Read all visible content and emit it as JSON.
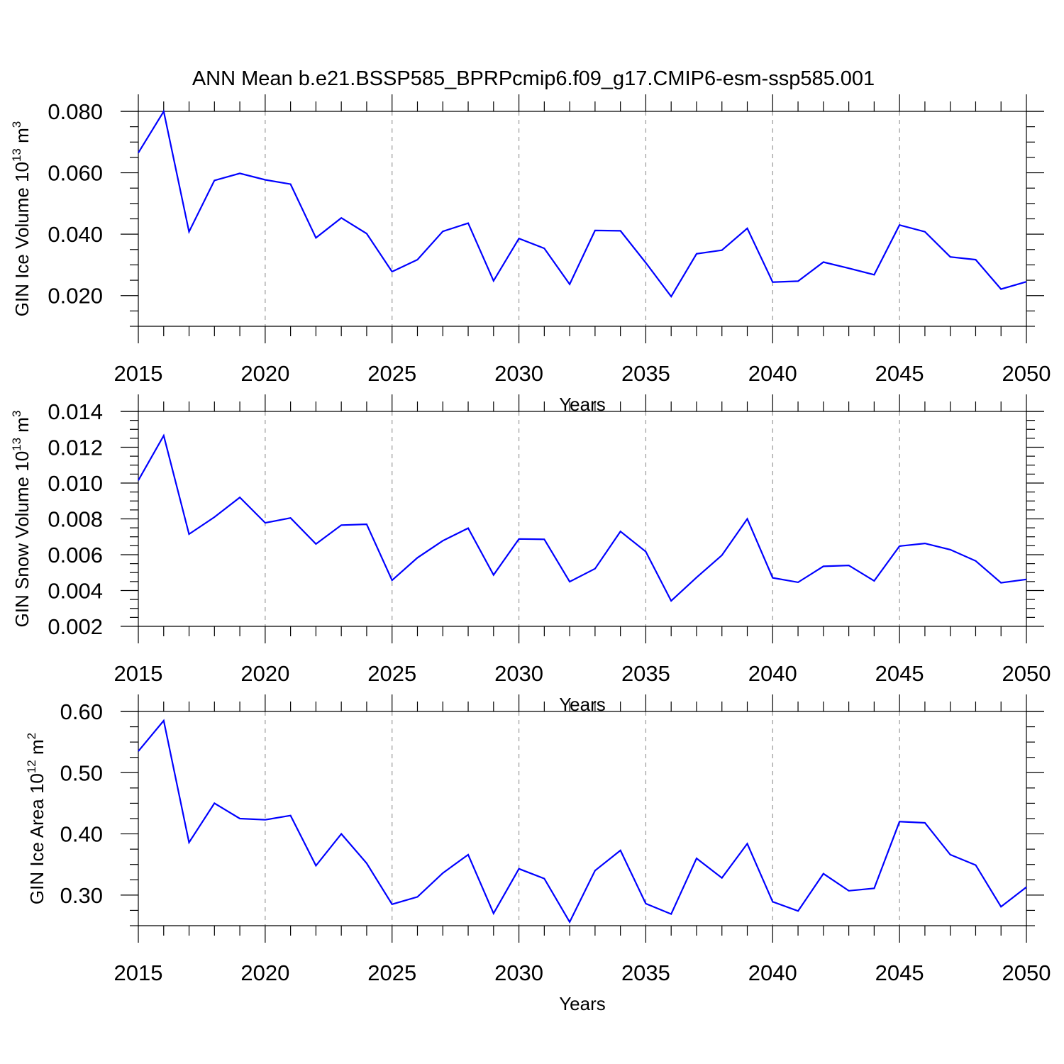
{
  "chart_data": {
    "title": "ANN Mean b.e21.BSSP585_BPRPcmip6.f09_g17.CMIP6-esm-ssp585.001",
    "panels": [
      {
        "type": "line",
        "ylabel": "GIN Ice Volume 10",
        "ylabel_exp": "13",
        "ylabel_unit": "m",
        "ylabel_unit_exp": "3",
        "xlabel": "Years",
        "xlim": [
          2015,
          2050
        ],
        "ylim": [
          0.01,
          0.08
        ],
        "yticks": [
          0.02,
          0.04,
          0.06,
          0.08
        ],
        "ytick_labels": [
          "0.020",
          "0.040",
          "0.060",
          "0.080"
        ],
        "x": [
          2015,
          2016,
          2017,
          2018,
          2019,
          2020,
          2021,
          2022,
          2023,
          2024,
          2025,
          2026,
          2027,
          2028,
          2029,
          2030,
          2031,
          2032,
          2033,
          2034,
          2035,
          2036,
          2037,
          2038,
          2039,
          2040,
          2041,
          2042,
          2043,
          2044,
          2045,
          2046,
          2047,
          2048,
          2049,
          2050
        ],
        "y": [
          0.0665,
          0.08,
          0.0408,
          0.0575,
          0.0598,
          0.0577,
          0.0563,
          0.0388,
          0.0453,
          0.0402,
          0.0278,
          0.0317,
          0.0409,
          0.0436,
          0.0248,
          0.0386,
          0.0354,
          0.0237,
          0.0412,
          0.0411,
          0.0307,
          0.0197,
          0.0336,
          0.0348,
          0.0419,
          0.0244,
          0.0247,
          0.0309,
          0.0289,
          0.0268,
          0.043,
          0.0408,
          0.0326,
          0.0317,
          0.0221,
          0.0245
        ]
      },
      {
        "type": "line",
        "ylabel": "GIN Snow Volume 10",
        "ylabel_exp": "13",
        "ylabel_unit": "m",
        "ylabel_unit_exp": "3",
        "xlabel": "Years",
        "xlim": [
          2015,
          2050
        ],
        "ylim": [
          0.002,
          0.014
        ],
        "yticks": [
          0.002,
          0.004,
          0.006,
          0.008,
          0.01,
          0.012,
          0.014
        ],
        "ytick_labels": [
          "0.002",
          "0.004",
          "0.006",
          "0.008",
          "0.010",
          "0.012",
          "0.014"
        ],
        "x": [
          2015,
          2016,
          2017,
          2018,
          2019,
          2020,
          2021,
          2022,
          2023,
          2024,
          2025,
          2026,
          2027,
          2028,
          2029,
          2030,
          2031,
          2032,
          2033,
          2034,
          2035,
          2036,
          2037,
          2038,
          2039,
          2040,
          2041,
          2042,
          2043,
          2044,
          2045,
          2046,
          2047,
          2048,
          2049,
          2050
        ],
        "y": [
          0.01015,
          0.01265,
          0.00715,
          0.0081,
          0.0092,
          0.00778,
          0.00805,
          0.0066,
          0.00765,
          0.0077,
          0.00457,
          0.00583,
          0.00678,
          0.00748,
          0.00487,
          0.00688,
          0.00686,
          0.00449,
          0.00522,
          0.0073,
          0.00617,
          0.00342,
          0.00473,
          0.00597,
          0.008,
          0.00471,
          0.00446,
          0.00535,
          0.0054,
          0.00454,
          0.00648,
          0.00663,
          0.00628,
          0.00565,
          0.00443,
          0.00462
        ]
      },
      {
        "type": "line",
        "ylabel": "GIN Ice Area 10",
        "ylabel_exp": "12",
        "ylabel_unit": "m",
        "ylabel_unit_exp": "2",
        "xlabel": "Years",
        "xlim": [
          2015,
          2050
        ],
        "ylim": [
          0.25,
          0.6
        ],
        "yticks": [
          0.3,
          0.4,
          0.5,
          0.6
        ],
        "ytick_labels": [
          "0.30",
          "0.40",
          "0.50",
          "0.60"
        ],
        "x": [
          2015,
          2016,
          2017,
          2018,
          2019,
          2020,
          2021,
          2022,
          2023,
          2024,
          2025,
          2026,
          2027,
          2028,
          2029,
          2030,
          2031,
          2032,
          2033,
          2034,
          2035,
          2036,
          2037,
          2038,
          2039,
          2040,
          2041,
          2042,
          2043,
          2044,
          2045,
          2046,
          2047,
          2048,
          2049,
          2050
        ],
        "y": [
          0.535,
          0.585,
          0.386,
          0.45,
          0.425,
          0.423,
          0.43,
          0.348,
          0.4,
          0.352,
          0.285,
          0.297,
          0.336,
          0.366,
          0.27,
          0.343,
          0.327,
          0.256,
          0.34,
          0.373,
          0.286,
          0.269,
          0.36,
          0.328,
          0.384,
          0.289,
          0.274,
          0.335,
          0.307,
          0.311,
          0.42,
          0.418,
          0.366,
          0.349,
          0.281,
          0.313
        ]
      }
    ],
    "xticks": [
      2015,
      2020,
      2025,
      2030,
      2035,
      2040,
      2045,
      2050
    ],
    "xtick_labels": [
      "2015",
      "2020",
      "2025",
      "2030",
      "2035",
      "2040",
      "2045",
      "2050"
    ],
    "grid": "vertical-dashed",
    "colors": {
      "series": "#0000ff",
      "grid": "#999999",
      "axis": "#000000"
    }
  }
}
